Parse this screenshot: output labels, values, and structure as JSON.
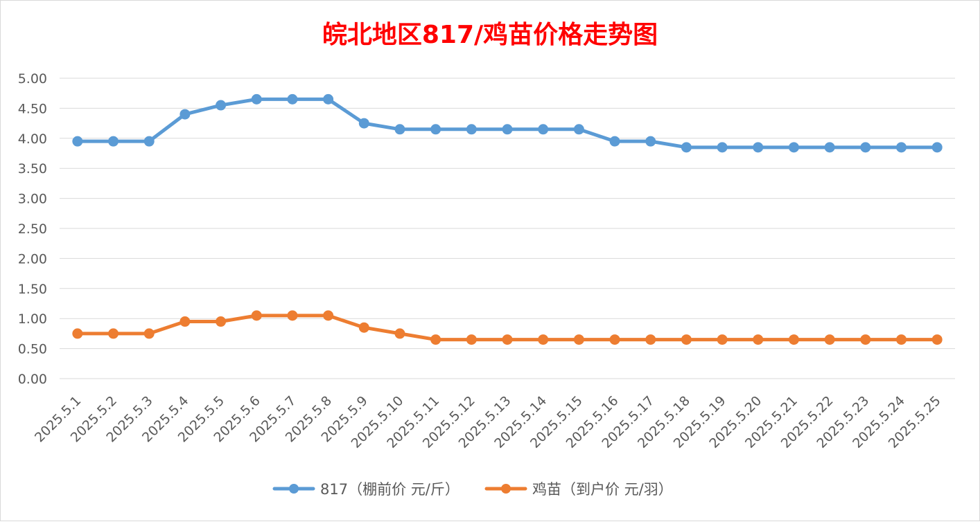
{
  "chart_data": {
    "type": "line",
    "title": "皖北地区817/鸡苗价格走势图",
    "title_color": "#ff0000",
    "xlabel": "",
    "ylabel": "",
    "ylim": [
      0,
      5
    ],
    "yticks": [
      "0.00",
      "0.50",
      "1.00",
      "1.50",
      "2.00",
      "2.50",
      "3.00",
      "3.50",
      "4.00",
      "4.50",
      "5.00"
    ],
    "grid": true,
    "legend_position": "bottom",
    "categories": [
      "2025.5.1",
      "2025.5.2",
      "2025.5.3",
      "2025.5.4",
      "2025.5.5",
      "2025.5.6",
      "2025.5.7",
      "2025.5.8",
      "2025.5.9",
      "2025.5.10",
      "2025.5.11",
      "2025.5.12",
      "2025.5.13",
      "2025.5.14",
      "2025.5.15",
      "2025.5.16",
      "2025.5.17",
      "2025.5.18",
      "2025.5.19",
      "2025.5.20",
      "2025.5.21",
      "2025.5.22",
      "2025.5.23",
      "2025.5.24",
      "2025.5.25"
    ],
    "series": [
      {
        "name": "817（棚前价 元/斤）",
        "color": "#5b9bd5",
        "values": [
          3.95,
          3.95,
          3.95,
          4.4,
          4.55,
          4.65,
          4.65,
          4.65,
          4.25,
          4.15,
          4.15,
          4.15,
          4.15,
          4.15,
          4.15,
          3.95,
          3.95,
          3.85,
          3.85,
          3.85,
          3.85,
          3.85,
          3.85,
          3.85,
          3.85
        ]
      },
      {
        "name": "鸡苗（到户价 元/羽）",
        "color": "#ed7d31",
        "values": [
          0.75,
          0.75,
          0.75,
          0.95,
          0.95,
          1.05,
          1.05,
          1.05,
          0.85,
          0.75,
          0.65,
          0.65,
          0.65,
          0.65,
          0.65,
          0.65,
          0.65,
          0.65,
          0.65,
          0.65,
          0.65,
          0.65,
          0.65,
          0.65,
          0.65
        ]
      }
    ]
  }
}
